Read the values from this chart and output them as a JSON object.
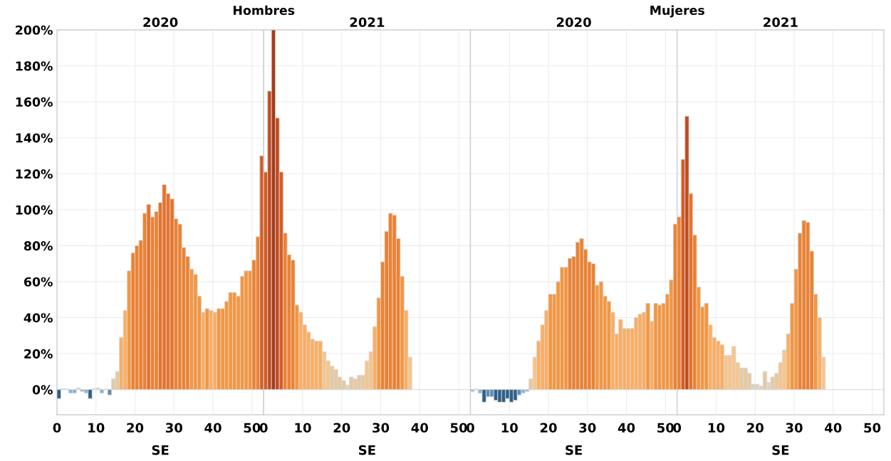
{
  "chart_data": [
    {
      "type": "bar",
      "title": "Hombres",
      "subtitle": "2020",
      "xlabel": "SE",
      "grid": true,
      "xlim": [
        0,
        53
      ],
      "xticks": [
        0,
        10,
        20,
        30,
        40,
        50
      ],
      "ylim": [
        -14,
        200
      ],
      "yticks": [
        {
          "value": 0,
          "label": "0%"
        },
        {
          "value": 20,
          "label": "20%"
        },
        {
          "value": 40,
          "label": "40%"
        },
        {
          "value": 60,
          "label": "60%"
        },
        {
          "value": 80,
          "label": "80%"
        },
        {
          "value": 100,
          "label": "100%"
        },
        {
          "value": 120,
          "label": "120%"
        },
        {
          "value": 140,
          "label": "140%"
        },
        {
          "value": 160,
          "label": "160%"
        },
        {
          "value": 180,
          "label": "180%"
        },
        {
          "value": 200,
          "label": "200%"
        }
      ],
      "ref_lines": [
        {
          "axis": "y",
          "value": 0,
          "line_style": "dotted",
          "color": "#cccccc"
        }
      ],
      "x": [
        0.5,
        1.5,
        2.5,
        3.5,
        4.5,
        5.5,
        6.5,
        7.5,
        8.5,
        9.5,
        10.5,
        11.5,
        12.5,
        13.5,
        14.5,
        15.5,
        16.5,
        17.5,
        18.5,
        19.5,
        20.5,
        21.5,
        22.5,
        23.5,
        24.5,
        25.5,
        26.5,
        27.5,
        28.5,
        29.5,
        30.5,
        31.5,
        32.5,
        33.5,
        34.5,
        35.5,
        36.5,
        37.5,
        38.5,
        39.5,
        40.5,
        41.5,
        42.5,
        43.5,
        44.5,
        45.5,
        46.5,
        47.5,
        48.5,
        49.5,
        50.5,
        51.5,
        52.5
      ],
      "values": [
        -5,
        0.5,
        0.5,
        -2,
        -2,
        1,
        -1,
        -2,
        -5,
        0.5,
        1,
        -2,
        0.3,
        -3,
        6,
        10,
        29,
        44,
        66,
        76,
        80,
        83,
        98,
        103,
        96,
        99,
        104,
        114,
        109,
        106,
        95,
        92,
        79,
        74,
        67,
        64,
        52,
        43,
        45,
        44,
        43,
        45,
        45,
        49,
        54,
        54,
        52,
        63,
        66,
        66,
        72,
        85,
        130
      ],
      "colors": [
        "#2f5f8a",
        "#dcd3c3",
        "#dcd3c3",
        "#86b4d9",
        "#86b4d9",
        "#dcd3c3",
        "#86b4d9",
        "#86b4d9",
        "#2f5f8a",
        "#dcd3c3",
        "#dcd3c3",
        "#86b4d9",
        "#dcd3c3",
        "#5b8db8",
        "#e6c9a0",
        "#e6c9a0",
        "#fbae62",
        "#fbae62",
        "#f5963e",
        "#ee8130",
        "#ee8130",
        "#ee8130",
        "#ee8130",
        "#e8722a",
        "#ee8130",
        "#ee8130",
        "#e8722a",
        "#e8722a",
        "#e8722a",
        "#e8722a",
        "#ee8130",
        "#ee8130",
        "#ee8130",
        "#ee8130",
        "#f5963e",
        "#f5963e",
        "#f5963e",
        "#fbae62",
        "#f5963e",
        "#fbae62",
        "#fbae62",
        "#f5963e",
        "#f5963e",
        "#f5963e",
        "#f5963e",
        "#f5963e",
        "#f5963e",
        "#f5963e",
        "#f5963e",
        "#f5963e",
        "#ee8130",
        "#ee8130",
        "#d85c22"
      ]
    },
    {
      "type": "bar",
      "subtitle": "2021",
      "xlabel": "SE",
      "grid": true,
      "tick_labels": "x",
      "xlim": [
        0,
        53
      ],
      "xticks": [
        0,
        10,
        20,
        30,
        40,
        50
      ],
      "ylim": [
        -14,
        200
      ],
      "yticks": [
        {
          "value": 0,
          "label": null
        },
        {
          "value": 20,
          "label": null
        },
        {
          "value": 40,
          "label": null
        },
        {
          "value": 60,
          "label": null
        },
        {
          "value": 80,
          "label": null
        },
        {
          "value": 100,
          "label": null
        },
        {
          "value": 120,
          "label": null
        },
        {
          "value": 140,
          "label": null
        },
        {
          "value": 160,
          "label": null
        },
        {
          "value": 180,
          "label": null
        },
        {
          "value": 200,
          "label": null
        }
      ],
      "ref_lines": [
        {
          "axis": "y",
          "value": 0,
          "line_style": "dotted",
          "color": "#cccccc"
        }
      ],
      "x": [
        0.5,
        1.5,
        2.5,
        3.5,
        4.5,
        5.5,
        6.5,
        7.5,
        8.5,
        9.5,
        10.5,
        11.5,
        12.5,
        13.5,
        14.5,
        15.5,
        16.5,
        17.5,
        18.5,
        19.5,
        20.5,
        21.5,
        22.5,
        23.5,
        24.5,
        25.5,
        26.5,
        27.5,
        28.5,
        29.5,
        30.5,
        31.5,
        32.5,
        33.5,
        34.5,
        35.5,
        36.5,
        37.5
      ],
      "values": [
        121,
        166,
        200,
        151,
        121,
        87,
        75,
        72,
        47,
        43,
        36,
        32,
        28,
        27,
        27,
        21,
        16,
        13,
        11,
        7,
        5,
        2.5,
        7,
        6,
        8,
        8,
        16,
        21,
        35,
        51,
        71,
        88,
        98,
        97,
        84,
        63,
        44,
        18
      ],
      "colors": [
        "#d85c22",
        "#c24b1f",
        "#a83a1a",
        "#c24b1f",
        "#d85c22",
        "#ee8130",
        "#ee8130",
        "#ee8130",
        "#f5963e",
        "#fbae62",
        "#fbae62",
        "#fbae62",
        "#fbae62",
        "#fbae62",
        "#fbae62",
        "#f7c58a",
        "#f7c58a",
        "#e6c9a0",
        "#e6c9a0",
        "#e6c9a0",
        "#e6c9a0",
        "#dcd3c3",
        "#e6c9a0",
        "#e6c9a0",
        "#e6c9a0",
        "#e6c9a0",
        "#f7c58a",
        "#f7c58a",
        "#fbae62",
        "#f5963e",
        "#ee8130",
        "#ee8130",
        "#ee8130",
        "#ee8130",
        "#ee8130",
        "#f5963e",
        "#fbae62",
        "#f7c58a"
      ]
    },
    {
      "type": "bar",
      "title": "Mujeres",
      "subtitle": "2020",
      "xlabel": "SE",
      "grid": true,
      "tick_labels": "x",
      "xlim": [
        0,
        53
      ],
      "xticks": [
        0,
        10,
        20,
        30,
        40,
        50
      ],
      "ylim": [
        -14,
        200
      ],
      "yticks": [
        {
          "value": 0,
          "label": null
        },
        {
          "value": 20,
          "label": null
        },
        {
          "value": 40,
          "label": null
        },
        {
          "value": 60,
          "label": null
        },
        {
          "value": 80,
          "label": null
        },
        {
          "value": 100,
          "label": null
        },
        {
          "value": 120,
          "label": null
        },
        {
          "value": 140,
          "label": null
        },
        {
          "value": 160,
          "label": null
        },
        {
          "value": 180,
          "label": null
        },
        {
          "value": 200,
          "label": null
        }
      ],
      "ref_lines": [
        {
          "axis": "y",
          "value": 0,
          "line_style": "dotted",
          "color": "#cccccc"
        }
      ],
      "x": [
        0.5,
        1.5,
        2.5,
        3.5,
        4.5,
        5.5,
        6.5,
        7.5,
        8.5,
        9.5,
        10.5,
        11.5,
        12.5,
        13.5,
        14.5,
        15.5,
        16.5,
        17.5,
        18.5,
        19.5,
        20.5,
        21.5,
        22.5,
        23.5,
        24.5,
        25.5,
        26.5,
        27.5,
        28.5,
        29.5,
        30.5,
        31.5,
        32.5,
        33.5,
        34.5,
        35.5,
        36.5,
        37.5,
        38.5,
        39.5,
        40.5,
        41.5,
        42.5,
        43.5,
        44.5,
        45.5,
        46.5,
        47.5,
        48.5,
        49.5,
        50.5,
        51.5,
        52.5
      ],
      "values": [
        -1,
        0.4,
        -2,
        -7,
        -4,
        -4,
        -6,
        -7,
        -7,
        -5,
        -7,
        -6,
        -3,
        -2,
        -1,
        6,
        18,
        27,
        36,
        44,
        53,
        53,
        60,
        68,
        68,
        73,
        74,
        82,
        84,
        78,
        71,
        70,
        58,
        60,
        52,
        49,
        43,
        31,
        39,
        34,
        34,
        34,
        40,
        42,
        43,
        48,
        38,
        48,
        47,
        48,
        53,
        61,
        92
      ],
      "colors": [
        "#86b4d9",
        "#dcd3c3",
        "#86b4d9",
        "#2f5f8a",
        "#5b8db8",
        "#5b8db8",
        "#2f5f8a",
        "#2f5f8a",
        "#2f5f8a",
        "#2f5f8a",
        "#2f5f8a",
        "#2f5f8a",
        "#5b8db8",
        "#86b4d9",
        "#86b4d9",
        "#e6c9a0",
        "#f7c58a",
        "#fbae62",
        "#fbae62",
        "#fbae62",
        "#f5963e",
        "#f5963e",
        "#f5963e",
        "#f5963e",
        "#f5963e",
        "#ee8130",
        "#ee8130",
        "#ee8130",
        "#ee8130",
        "#ee8130",
        "#ee8130",
        "#ee8130",
        "#f5963e",
        "#f5963e",
        "#f5963e",
        "#f5963e",
        "#fbae62",
        "#fbae62",
        "#fbae62",
        "#fbae62",
        "#fbae62",
        "#fbae62",
        "#fbae62",
        "#fbae62",
        "#fbae62",
        "#f5963e",
        "#fbae62",
        "#f5963e",
        "#f5963e",
        "#f5963e",
        "#f5963e",
        "#f5963e",
        "#ee8130"
      ]
    },
    {
      "type": "bar",
      "subtitle": "2021",
      "xlabel": "SE",
      "grid": true,
      "tick_labels": "x",
      "xlim": [
        0,
        53
      ],
      "xticks": [
        0,
        10,
        20,
        30,
        40,
        50
      ],
      "ylim": [
        -14,
        200
      ],
      "yticks": [
        {
          "value": 0,
          "label": null
        },
        {
          "value": 20,
          "label": null
        },
        {
          "value": 40,
          "label": null
        },
        {
          "value": 60,
          "label": null
        },
        {
          "value": 80,
          "label": null
        },
        {
          "value": 100,
          "label": null
        },
        {
          "value": 120,
          "label": null
        },
        {
          "value": 140,
          "label": null
        },
        {
          "value": 160,
          "label": null
        },
        {
          "value": 180,
          "label": null
        },
        {
          "value": 200,
          "label": null
        }
      ],
      "ref_lines": [
        {
          "axis": "y",
          "value": 0,
          "line_style": "dotted",
          "color": "#cccccc"
        }
      ],
      "x": [
        0.5,
        1.5,
        2.5,
        3.5,
        4.5,
        5.5,
        6.5,
        7.5,
        8.5,
        9.5,
        10.5,
        11.5,
        12.5,
        13.5,
        14.5,
        15.5,
        16.5,
        17.5,
        18.5,
        19.5,
        20.5,
        21.5,
        22.5,
        23.5,
        24.5,
        25.5,
        26.5,
        27.5,
        28.5,
        29.5,
        30.5,
        31.5,
        32.5,
        33.5,
        34.5,
        35.5,
        36.5,
        37.5
      ],
      "values": [
        96,
        128,
        152,
        109,
        86,
        57,
        46,
        48,
        36,
        29,
        27,
        25,
        19,
        19,
        24,
        15,
        12,
        12,
        9,
        3,
        3,
        2,
        10,
        4,
        7,
        9,
        15,
        22,
        31,
        48,
        67,
        87,
        94,
        93,
        77,
        53,
        40,
        18
      ],
      "colors": [
        "#ee8130",
        "#d85c22",
        "#c24b1f",
        "#e8722a",
        "#ee8130",
        "#f5963e",
        "#f5963e",
        "#f5963e",
        "#fbae62",
        "#fbae62",
        "#fbae62",
        "#fbae62",
        "#f7c58a",
        "#f7c58a",
        "#f7c58a",
        "#f7c58a",
        "#e6c9a0",
        "#e6c9a0",
        "#e6c9a0",
        "#dcd3c3",
        "#dcd3c3",
        "#dcd3c3",
        "#e6c9a0",
        "#dcd3c3",
        "#e6c9a0",
        "#e6c9a0",
        "#f7c58a",
        "#f7c58a",
        "#fbae62",
        "#f5963e",
        "#f5963e",
        "#ee8130",
        "#ee8130",
        "#ee8130",
        "#ee8130",
        "#f5963e",
        "#fbae62",
        "#f7c58a"
      ]
    }
  ]
}
